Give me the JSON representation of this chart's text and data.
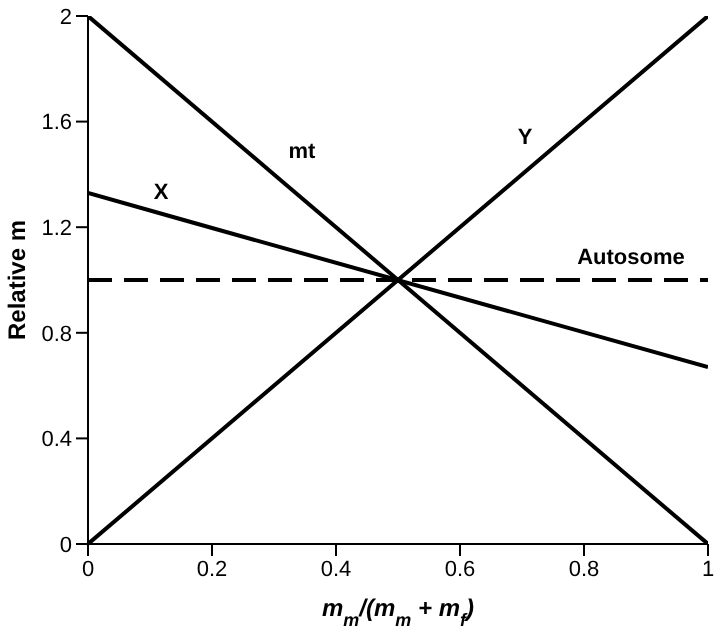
{
  "chart_data": {
    "type": "line",
    "xlabel": "m$_{m}$/(m$_{m}$ + m$_{f}$)",
    "ylabel": "Relative m",
    "xlim": [
      0,
      1
    ],
    "xticks": [
      0,
      0.2,
      0.4,
      0.6,
      0.8,
      1
    ],
    "ylim": [
      0,
      2
    ],
    "yticks": [
      0,
      0.4,
      0.8,
      1.2,
      1.6,
      2
    ],
    "grid": false,
    "legend": false,
    "marker": "none",
    "series": [
      {
        "name": "mt",
        "color": "#000000",
        "x": [
          0,
          0.3,
          1
        ],
        "values": [
          2,
          1.4,
          0
        ],
        "line_style": "solid"
      },
      {
        "name": "Y",
        "color": "#000000",
        "x": [
          0,
          0.75,
          1
        ],
        "values": [
          0,
          1.5,
          2
        ],
        "line_style": "solid"
      },
      {
        "name": "X",
        "color": "#000000",
        "x": [
          0,
          0.15,
          1
        ],
        "values": [
          1.33,
          1.23,
          0.67
        ],
        "line_style": "solid"
      },
      {
        "name": "Autosome",
        "color": "#000000",
        "x": [
          0,
          0.85,
          1
        ],
        "values": [
          1,
          1,
          1
        ],
        "line_style": "dashed"
      }
    ]
  }
}
